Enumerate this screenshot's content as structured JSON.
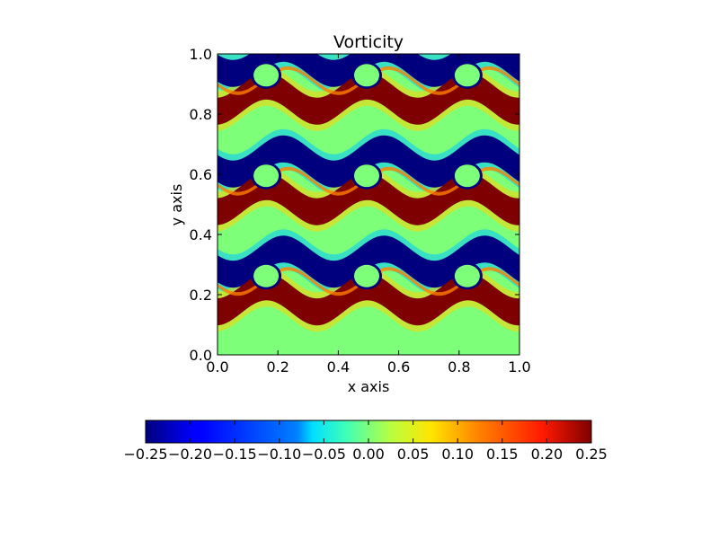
{
  "chart_data": {
    "type": "heatmap",
    "title": "Vorticity",
    "xlabel": "x axis",
    "ylabel": "y axis",
    "xlim": [
      0.0,
      1.0
    ],
    "ylim": [
      0.0,
      1.0
    ],
    "x_ticks": [
      "0.0",
      "0.2",
      "0.4",
      "0.6",
      "0.8",
      "1.0"
    ],
    "y_ticks": [
      "0.0",
      "0.2",
      "0.4",
      "0.6",
      "0.8",
      "1.0"
    ],
    "grid": false,
    "colormap": "jet",
    "colorbar": {
      "orientation": "horizontal",
      "placement": "bottom",
      "vmin": -0.25,
      "vmax": 0.25,
      "ticks": [
        "−0.25",
        "−0.20",
        "−0.15",
        "−0.10",
        "−0.05",
        "0.00",
        "0.05",
        "0.10",
        "0.15",
        "0.20",
        "0.25"
      ]
    },
    "pattern": {
      "shear_layer_centers_y": [
        0.25,
        0.583,
        0.917
      ],
      "vortices_per_layer": 3,
      "vortex_centers_x": [
        0.167,
        0.5,
        0.833
      ],
      "positive_vorticity": 0.25,
      "negative_vorticity": -0.25,
      "background_vorticity": 0.0
    }
  }
}
